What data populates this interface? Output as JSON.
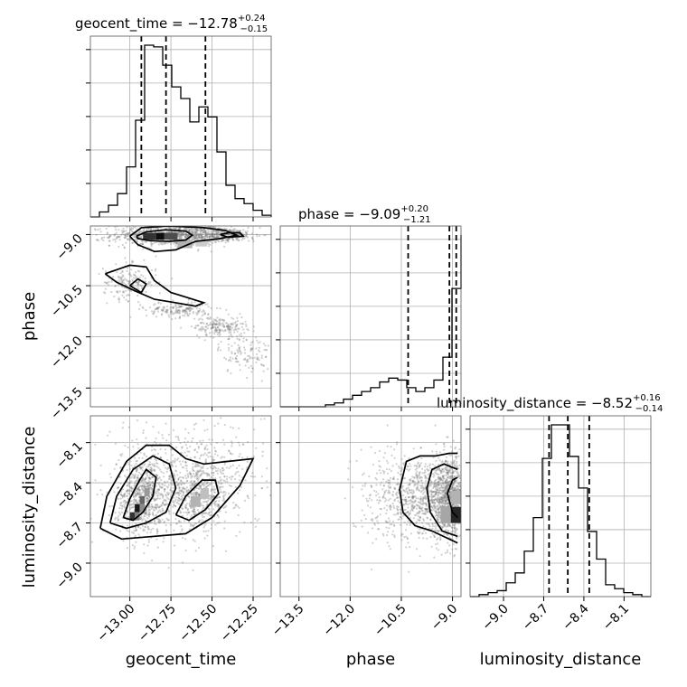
{
  "colors": {
    "line": "#000000",
    "grid": "#b0b0b0",
    "points": "#7a7a7a"
  },
  "chart_data": {
    "type": "corner",
    "parameters": [
      "geocent_time",
      "phase",
      "luminosity_distance"
    ],
    "titles": [
      {
        "param": "geocent_time",
        "prefix": "geocent_time = ",
        "median": "−12.78",
        "upper": "+0.24",
        "lower": "−0.15"
      },
      {
        "param": "phase",
        "prefix": "phase = ",
        "median": "−9.09",
        "upper": "+0.20",
        "lower": "−1.21"
      },
      {
        "param": "luminosity_distance",
        "prefix": "luminosity_distance = ",
        "median": "−8.52",
        "upper": "+0.16",
        "lower": "−0.14"
      }
    ],
    "ranges": {
      "geocent_time": [
        -13.24,
        -12.14
      ],
      "phase": [
        -14.05,
        -8.75
      ],
      "luminosity_distance": [
        -9.25,
        -7.9
      ]
    },
    "ticks": {
      "geocent_time": {
        "values": [
          -13.0,
          -12.75,
          -12.5,
          -12.25
        ],
        "labels": [
          "−13.00",
          "−12.75",
          "−12.50",
          "−12.25"
        ]
      },
      "phase": {
        "values": [
          -13.5,
          -12.0,
          -10.5,
          -9.0
        ],
        "labels": [
          "−13.5",
          "−12.0",
          "−10.5",
          "−9.0"
        ]
      },
      "luminosity_distance": {
        "values": [
          -9.0,
          -8.7,
          -8.4,
          -8.1
        ],
        "labels": [
          "−9.0",
          "−8.7",
          "−8.4",
          "−8.1"
        ]
      }
    },
    "axis_labels": {
      "x": [
        "geocent_time",
        "phase",
        "luminosity_distance"
      ],
      "y": [
        "phase",
        "luminosity_distance"
      ]
    },
    "quantiles": {
      "geocent_time": [
        -12.93,
        -12.78,
        -12.54
      ],
      "phase": [
        -10.3,
        -9.09,
        -8.89
      ],
      "luminosity_distance": [
        -8.66,
        -8.52,
        -8.36
      ]
    },
    "histograms": {
      "geocent_time": {
        "edges": [
          -13.24,
          -13.185,
          -13.13,
          -13.075,
          -13.02,
          -12.965,
          -12.91,
          -12.855,
          -12.8,
          -12.745,
          -12.69,
          -12.635,
          -12.58,
          -12.525,
          -12.47,
          -12.415,
          -12.36,
          -12.305,
          -12.25,
          -12.195,
          -12.14
        ],
        "counts": [
          0,
          3,
          7,
          14,
          30,
          58,
          103,
          102,
          91,
          78,
          71,
          57,
          66,
          60,
          39,
          19,
          11,
          8,
          4,
          1
        ]
      },
      "phase": {
        "edges": [
          -14.05,
          -13.785,
          -13.52,
          -13.255,
          -12.99,
          -12.725,
          -12.46,
          -12.195,
          -11.93,
          -11.665,
          -11.4,
          -11.135,
          -10.87,
          -10.605,
          -10.34,
          -10.075,
          -9.81,
          -9.545,
          -9.28,
          -9.015,
          -8.75
        ],
        "counts": [
          0,
          0,
          0,
          0,
          0,
          1,
          2,
          4,
          6,
          8,
          10,
          13,
          15,
          14,
          10,
          8,
          10,
          14,
          26,
          62,
          90
        ]
      },
      "luminosity_distance": {
        "edges": [
          -9.25,
          -9.1825,
          -9.115,
          -9.0475,
          -8.98,
          -8.9125,
          -8.845,
          -8.7775,
          -8.71,
          -8.6425,
          -8.575,
          -8.5075,
          -8.44,
          -8.3725,
          -8.305,
          -8.2375,
          -8.17,
          -8.1025,
          -8.035,
          -7.9675,
          -7.9
        ],
        "counts": [
          0,
          1,
          2,
          3,
          7,
          12,
          23,
          40,
          70,
          87,
          87,
          71,
          55,
          33,
          19,
          6,
          4,
          2,
          1,
          0
        ]
      }
    },
    "heat_cells": {
      "phase_vs_geocent_time": [
        {
          "x": -12.92,
          "y": -8.95,
          "w": 0.08,
          "h": 0.2,
          "shade": 0.8
        },
        {
          "x": -12.84,
          "y": -8.95,
          "w": 0.05,
          "h": 0.2,
          "shade": 0.95
        },
        {
          "x": -12.79,
          "y": -8.95,
          "w": 0.08,
          "h": 0.2,
          "shade": 0.7
        },
        {
          "x": -12.71,
          "y": -9.15,
          "w": 0.09,
          "h": 0.25,
          "shade": 0.3
        },
        {
          "x": -12.6,
          "y": -9.15,
          "w": 0.07,
          "h": 0.2,
          "shade": 0.2
        }
      ],
      "luminosity_distance_vs_geocent_time": [
        {
          "x": -13.0,
          "y": -8.62,
          "w": 0.03,
          "h": 0.06,
          "shade": 0.8
        },
        {
          "x": -12.97,
          "y": -8.56,
          "w": 0.03,
          "h": 0.06,
          "shade": 0.9
        },
        {
          "x": -12.94,
          "y": -8.5,
          "w": 0.03,
          "h": 0.06,
          "shade": 0.6
        },
        {
          "x": -12.91,
          "y": -8.44,
          "w": 0.03,
          "h": 0.06,
          "shade": 0.4
        },
        {
          "x": -12.97,
          "y": -8.62,
          "w": 0.03,
          "h": 0.06,
          "shade": 0.5
        },
        {
          "x": -12.94,
          "y": -8.56,
          "w": 0.03,
          "h": 0.06,
          "shade": 0.45
        },
        {
          "x": -12.63,
          "y": -8.5,
          "w": 0.06,
          "h": 0.08,
          "shade": 0.3
        },
        {
          "x": -12.57,
          "y": -8.44,
          "w": 0.05,
          "h": 0.08,
          "shade": 0.25
        }
      ],
      "luminosity_distance_vs_phase": [
        {
          "x": -9.05,
          "y": -8.58,
          "w": 0.3,
          "h": 0.12,
          "shade": 0.85
        },
        {
          "x": -9.35,
          "y": -8.58,
          "w": 0.3,
          "h": 0.12,
          "shade": 0.35
        },
        {
          "x": -9.05,
          "y": -8.46,
          "w": 0.3,
          "h": 0.1,
          "shade": 0.3
        }
      ]
    },
    "contours": {
      "phase_vs_geocent_time": [
        [
          [
            -12.96,
            -9.05
          ],
          [
            -12.9,
            -8.92
          ],
          [
            -12.78,
            -8.86
          ],
          [
            -12.66,
            -8.9
          ],
          [
            -12.62,
            -9.02
          ],
          [
            -12.66,
            -9.16
          ],
          [
            -12.76,
            -9.2
          ],
          [
            -12.88,
            -9.18
          ],
          [
            -12.95,
            -9.12
          ],
          [
            -12.96,
            -9.05
          ]
        ],
        [
          [
            -13.0,
            -9.05
          ],
          [
            -12.93,
            -8.8
          ],
          [
            -12.76,
            -8.75
          ],
          [
            -12.55,
            -8.8
          ],
          [
            -12.42,
            -8.88
          ],
          [
            -12.35,
            -9.02
          ],
          [
            -12.45,
            -9.12
          ],
          [
            -12.6,
            -9.2
          ],
          [
            -12.72,
            -9.45
          ],
          [
            -12.85,
            -9.5
          ],
          [
            -12.95,
            -9.3
          ],
          [
            -13.0,
            -9.05
          ]
        ],
        [
          [
            -12.45,
            -9.0
          ],
          [
            -12.4,
            -8.95
          ],
          [
            -12.33,
            -8.95
          ],
          [
            -12.31,
            -9.05
          ],
          [
            -12.4,
            -9.08
          ],
          [
            -12.45,
            -9.0
          ]
        ],
        [
          [
            -13.15,
            -10.15
          ],
          [
            -13.0,
            -9.9
          ],
          [
            -12.9,
            -9.95
          ],
          [
            -12.85,
            -10.35
          ],
          [
            -12.75,
            -10.7
          ],
          [
            -12.65,
            -10.85
          ],
          [
            -12.55,
            -11.0
          ],
          [
            -12.6,
            -11.1
          ],
          [
            -12.72,
            -11.0
          ],
          [
            -12.85,
            -10.9
          ],
          [
            -12.97,
            -10.65
          ],
          [
            -13.08,
            -10.4
          ],
          [
            -13.15,
            -10.15
          ]
        ],
        [
          [
            -13.0,
            -10.5
          ],
          [
            -12.95,
            -10.3
          ],
          [
            -12.9,
            -10.45
          ],
          [
            -12.93,
            -10.7
          ],
          [
            -13.0,
            -10.5
          ]
        ]
      ],
      "luminosity_distance_vs_geocent_time": [
        [
          [
            -13.04,
            -8.66
          ],
          [
            -13.0,
            -8.52
          ],
          [
            -12.94,
            -8.38
          ],
          [
            -12.9,
            -8.3
          ],
          [
            -12.84,
            -8.36
          ],
          [
            -12.86,
            -8.5
          ],
          [
            -12.92,
            -8.62
          ],
          [
            -12.98,
            -8.68
          ],
          [
            -13.04,
            -8.66
          ]
        ],
        [
          [
            -13.12,
            -8.7
          ],
          [
            -13.08,
            -8.5
          ],
          [
            -12.98,
            -8.3
          ],
          [
            -12.86,
            -8.2
          ],
          [
            -12.76,
            -8.26
          ],
          [
            -12.72,
            -8.44
          ],
          [
            -12.78,
            -8.62
          ],
          [
            -12.9,
            -8.7
          ],
          [
            -13.02,
            -8.74
          ],
          [
            -13.12,
            -8.7
          ]
        ],
        [
          [
            -12.72,
            -8.64
          ],
          [
            -12.66,
            -8.5
          ],
          [
            -12.56,
            -8.38
          ],
          [
            -12.48,
            -8.38
          ],
          [
            -12.46,
            -8.48
          ],
          [
            -12.54,
            -8.6
          ],
          [
            -12.64,
            -8.68
          ],
          [
            -12.72,
            -8.64
          ]
        ],
        [
          [
            -13.18,
            -8.74
          ],
          [
            -13.14,
            -8.5
          ],
          [
            -13.02,
            -8.24
          ],
          [
            -12.9,
            -8.12
          ],
          [
            -12.76,
            -8.12
          ],
          [
            -12.66,
            -8.22
          ],
          [
            -12.55,
            -8.26
          ],
          [
            -12.4,
            -8.24
          ],
          [
            -12.25,
            -8.22
          ],
          [
            -12.33,
            -8.42
          ],
          [
            -12.5,
            -8.66
          ],
          [
            -12.66,
            -8.78
          ],
          [
            -12.85,
            -8.8
          ],
          [
            -13.05,
            -8.82
          ],
          [
            -13.18,
            -8.74
          ]
        ]
      ],
      "luminosity_distance_vs_phase": [
        [
          [
            -8.85,
            -8.8
          ],
          [
            -9.3,
            -8.76
          ],
          [
            -9.65,
            -8.62
          ],
          [
            -9.75,
            -8.44
          ],
          [
            -9.6,
            -8.3
          ],
          [
            -9.25,
            -8.26
          ],
          [
            -8.85,
            -8.3
          ]
        ],
        [
          [
            -8.85,
            -8.66
          ],
          [
            -9.0,
            -8.62
          ],
          [
            -9.15,
            -8.48
          ],
          [
            -9.0,
            -8.38
          ],
          [
            -8.85,
            -8.36
          ]
        ],
        [
          [
            -8.85,
            -8.85
          ],
          [
            -9.6,
            -8.76
          ],
          [
            -10.1,
            -8.72
          ],
          [
            -10.45,
            -8.62
          ],
          [
            -10.55,
            -8.45
          ],
          [
            -10.35,
            -8.24
          ],
          [
            -9.95,
            -8.2
          ],
          [
            -9.5,
            -8.2
          ],
          [
            -9.1,
            -8.18
          ],
          [
            -8.85,
            -8.18
          ]
        ]
      ]
    },
    "scatter_clusters": {
      "phase_vs_geocent_time": [
        {
          "cx": -12.75,
          "cy": -9.02,
          "sx": 0.18,
          "sy": 0.16,
          "n": 900
        },
        {
          "cx": -12.45,
          "cy": -9.0,
          "sx": 0.12,
          "sy": 0.1,
          "n": 300
        },
        {
          "cx": -13.0,
          "cy": -10.4,
          "sx": 0.08,
          "sy": 0.25,
          "n": 180
        },
        {
          "cx": -12.7,
          "cy": -11.2,
          "sx": 0.1,
          "sy": 0.12,
          "n": 180
        },
        {
          "cx": -12.45,
          "cy": -11.7,
          "sx": 0.08,
          "sy": 0.15,
          "n": 200
        },
        {
          "cx": -12.3,
          "cy": -12.5,
          "sx": 0.08,
          "sy": 0.3,
          "n": 120
        }
      ],
      "luminosity_distance_vs_geocent_time": [
        {
          "cx": -12.92,
          "cy": -8.52,
          "sx": 0.08,
          "sy": 0.14,
          "n": 700
        },
        {
          "cx": -12.58,
          "cy": -8.5,
          "sx": 0.1,
          "sy": 0.12,
          "n": 500
        },
        {
          "cx": -12.8,
          "cy": -8.35,
          "sx": 0.18,
          "sy": 0.2,
          "n": 400
        },
        {
          "cx": -12.4,
          "cy": -8.3,
          "sx": 0.14,
          "sy": 0.22,
          "n": 200
        }
      ],
      "luminosity_distance_vs_phase": [
        {
          "cx": -9.1,
          "cy": -8.52,
          "sx": 0.25,
          "sy": 0.15,
          "n": 900
        },
        {
          "cx": -9.9,
          "cy": -8.5,
          "sx": 0.55,
          "sy": 0.16,
          "n": 700
        },
        {
          "cx": -11.0,
          "cy": -8.5,
          "sx": 0.5,
          "sy": 0.18,
          "n": 150
        }
      ]
    }
  }
}
